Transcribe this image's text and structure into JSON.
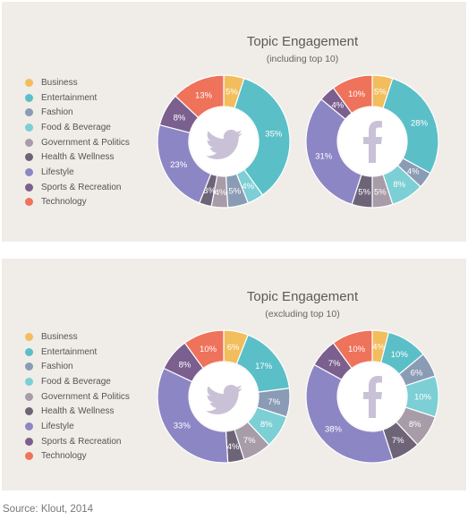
{
  "colors": {
    "Business": "#f2bd5c",
    "Entertainment": "#5bbfc8",
    "Fashion": "#8a9bb5",
    "Food & Beverage": "#7ccfd4",
    "Government & Politics": "#a79ca8",
    "Health & Wellness": "#6e6478",
    "Lifestyle": "#8d86c5",
    "Sports & Recreation": "#7a5f8f",
    "Technology": "#ef725b"
  },
  "legend": [
    "Business",
    "Entertainment",
    "Fashion",
    "Food & Beverage",
    "Government & Politics",
    "Health & Wellness",
    "Lifestyle",
    "Sports & Recreation",
    "Technology"
  ],
  "icons": {
    "twitter": "twitter-bird-icon",
    "facebook": "facebook-f-icon"
  },
  "panels": [
    {
      "title": "Topic Engagement",
      "subtitle": "(including top 10)"
    },
    {
      "title": "Topic Engagement",
      "subtitle": "(excluding top 10)"
    }
  ],
  "source": "Source: Klout, 2014",
  "chart_data": [
    {
      "type": "pie",
      "title": "Topic Engagement",
      "subtitle": "(including top 10)",
      "icon": "twitter",
      "slices": [
        {
          "label": "Business",
          "value": 5
        },
        {
          "label": "Entertainment",
          "value": 35
        },
        {
          "label": "Food & Beverage",
          "value": 4
        },
        {
          "label": "Fashion",
          "value": 5
        },
        {
          "label": "Government & Politics",
          "value": 4
        },
        {
          "label": "Health & Wellness",
          "value": 3
        },
        {
          "label": "Lifestyle",
          "value": 23
        },
        {
          "label": "Sports & Recreation",
          "value": 8
        },
        {
          "label": "Technology",
          "value": 13
        }
      ]
    },
    {
      "type": "pie",
      "title": "Topic Engagement",
      "subtitle": "(including top 10)",
      "icon": "facebook",
      "slices": [
        {
          "label": "Business",
          "value": 5
        },
        {
          "label": "Entertainment",
          "value": 28
        },
        {
          "label": "Fashion",
          "value": 4
        },
        {
          "label": "Food & Beverage",
          "value": 8
        },
        {
          "label": "Government & Politics",
          "value": 5
        },
        {
          "label": "Health & Wellness",
          "value": 5
        },
        {
          "label": "Lifestyle",
          "value": 31
        },
        {
          "label": "Sports & Recreation",
          "value": 4
        },
        {
          "label": "Technology",
          "value": 10
        }
      ]
    },
    {
      "type": "pie",
      "title": "Topic Engagement",
      "subtitle": "(excluding top 10)",
      "icon": "twitter",
      "slices": [
        {
          "label": "Business",
          "value": 6
        },
        {
          "label": "Entertainment",
          "value": 17
        },
        {
          "label": "Fashion",
          "value": 7
        },
        {
          "label": "Food & Beverage",
          "value": 8
        },
        {
          "label": "Government & Politics",
          "value": 7
        },
        {
          "label": "Health & Wellness",
          "value": 4
        },
        {
          "label": "Lifestyle",
          "value": 33
        },
        {
          "label": "Sports & Recreation",
          "value": 8
        },
        {
          "label": "Technology",
          "value": 10
        }
      ]
    },
    {
      "type": "pie",
      "title": "Topic Engagement",
      "subtitle": "(excluding top 10)",
      "icon": "facebook",
      "slices": [
        {
          "label": "Business",
          "value": 4
        },
        {
          "label": "Entertainment",
          "value": 10
        },
        {
          "label": "Fashion",
          "value": 6
        },
        {
          "label": "Food & Beverage",
          "value": 10
        },
        {
          "label": "Government & Politics",
          "value": 8
        },
        {
          "label": "Health & Wellness",
          "value": 7
        },
        {
          "label": "Lifestyle",
          "value": 38
        },
        {
          "label": "Sports & Recreation",
          "value": 7
        },
        {
          "label": "Technology",
          "value": 10
        }
      ]
    }
  ]
}
